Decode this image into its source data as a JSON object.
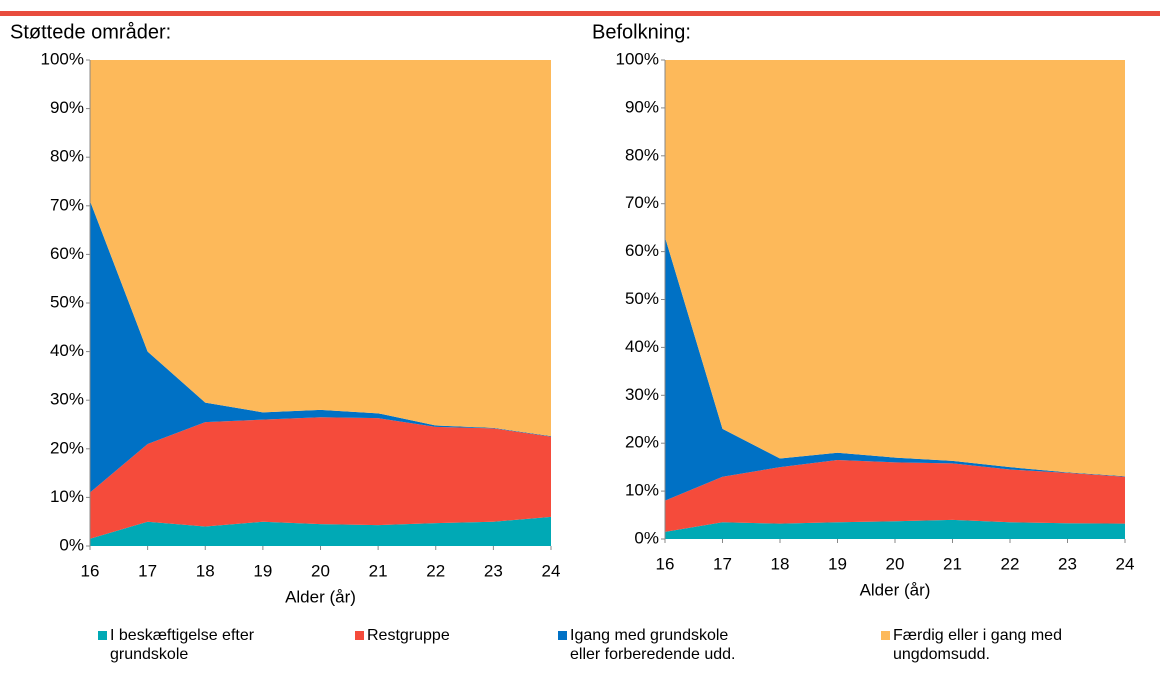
{
  "chart_data": [
    {
      "type": "area",
      "stacked": true,
      "title": "Støttede områder:",
      "x_label": "Alder (år)",
      "x": [
        16,
        17,
        18,
        19,
        20,
        21,
        22,
        23,
        24
      ],
      "xlim": [
        16,
        24
      ],
      "xticks": [
        16,
        17,
        18,
        19,
        20,
        21,
        22,
        23,
        24
      ],
      "ylim": [
        0,
        100
      ],
      "yticks": [
        {
          "value": 0,
          "label": "0%"
        },
        {
          "value": 10,
          "label": "10%"
        },
        {
          "value": 20,
          "label": "20%"
        },
        {
          "value": 30,
          "label": "30%"
        },
        {
          "value": 40,
          "label": "40%"
        },
        {
          "value": 50,
          "label": "50%"
        },
        {
          "value": 60,
          "label": "60%"
        },
        {
          "value": 70,
          "label": "70%"
        },
        {
          "value": 80,
          "label": "80%"
        },
        {
          "value": 90,
          "label": "90%"
        },
        {
          "value": 100,
          "label": "100%"
        }
      ],
      "series": [
        {
          "name": "I beskæftigelse efter grundskole",
          "color": "#00a9b5",
          "values": [
            1.5,
            5,
            4,
            5,
            4.5,
            4.3,
            4.7,
            5,
            6
          ]
        },
        {
          "name": "Restgruppe",
          "color": "#f54b3b",
          "values": [
            9.5,
            16,
            21.5,
            21,
            22,
            22,
            19.8,
            19.2,
            16.5
          ]
        },
        {
          "name": "Igang med grundskole eller forberedende udd.",
          "color": "#0071c5",
          "values": [
            60,
            19,
            4,
            1.5,
            1.5,
            1,
            0.3,
            0.1,
            0.1
          ]
        },
        {
          "name": "Færdig eller i gang med ungdomsudd.",
          "color": "#fdb95a",
          "values": [
            29,
            60,
            70.5,
            72.5,
            72,
            72.7,
            75.2,
            75.7,
            77.4
          ]
        }
      ]
    },
    {
      "type": "area",
      "stacked": true,
      "title": "Befolkning:",
      "x_label": "Alder (år)",
      "x": [
        16,
        17,
        18,
        19,
        20,
        21,
        22,
        23,
        24
      ],
      "xlim": [
        16,
        24
      ],
      "xticks": [
        16,
        17,
        18,
        19,
        20,
        21,
        22,
        23,
        24
      ],
      "ylim": [
        0,
        100
      ],
      "yticks": [
        {
          "value": 0,
          "label": "0%"
        },
        {
          "value": 10,
          "label": "10%"
        },
        {
          "value": 20,
          "label": "20%"
        },
        {
          "value": 30,
          "label": "30%"
        },
        {
          "value": 40,
          "label": "40%"
        },
        {
          "value": 50,
          "label": "50%"
        },
        {
          "value": 60,
          "label": "60%"
        },
        {
          "value": 70,
          "label": "70%"
        },
        {
          "value": 80,
          "label": "80%"
        },
        {
          "value": 90,
          "label": "90%"
        },
        {
          "value": 100,
          "label": "100%"
        }
      ],
      "series": [
        {
          "color": "#00a9b5",
          "values": [
            1.5,
            3.5,
            3.2,
            3.5,
            3.7,
            4,
            3.5,
            3.3,
            3.2
          ]
        },
        {
          "color": "#f54b3b",
          "values": [
            6.5,
            9.5,
            11.8,
            13,
            12.3,
            11.8,
            11,
            10.5,
            9.8
          ]
        },
        {
          "color": "#0071c5",
          "values": [
            55,
            10,
            1.8,
            1.5,
            1,
            0.5,
            0.5,
            0.1,
            0.1
          ]
        },
        {
          "color": "#fdb95a",
          "values": [
            37,
            77,
            83.2,
            82,
            83,
            83.7,
            85,
            86.1,
            86.9
          ]
        }
      ]
    }
  ]
}
